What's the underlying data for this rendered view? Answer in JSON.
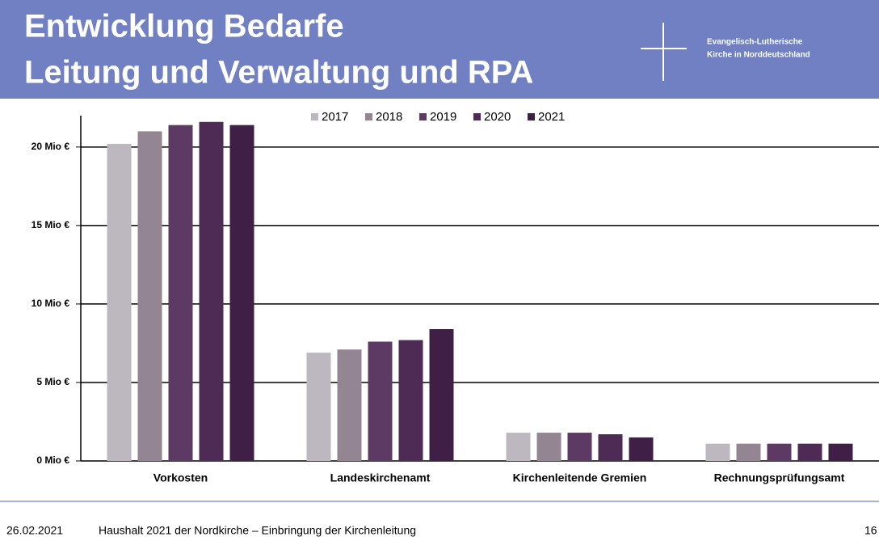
{
  "header": {
    "title_line1": "Entwicklung Bedarfe",
    "title_line2": "Leitung und Verwaltung und RPA",
    "org_line1": "Evangelisch-Lutherische",
    "org_line2": "Kirche in Norddeutschland"
  },
  "chart_data": {
    "type": "bar",
    "categories": [
      "Vorkosten",
      "Landeskirchenamt",
      "Kirchenleitende Gremien",
      "Rechnungsprüfungsamt"
    ],
    "series": [
      {
        "name": "2017",
        "color": "#bdb8c0",
        "values": [
          20.2,
          6.9,
          1.8,
          1.1
        ]
      },
      {
        "name": "2018",
        "color": "#938592",
        "values": [
          21.0,
          7.1,
          1.8,
          1.1
        ]
      },
      {
        "name": "2019",
        "color": "#5c3a63",
        "values": [
          21.4,
          7.6,
          1.8,
          1.1
        ]
      },
      {
        "name": "2020",
        "color": "#4e2b55",
        "values": [
          21.6,
          7.7,
          1.7,
          1.1
        ]
      },
      {
        "name": "2021",
        "color": "#3f1f45",
        "values": [
          21.4,
          8.4,
          1.5,
          1.1
        ]
      }
    ],
    "ylim": [
      0,
      22
    ],
    "yticks": [
      {
        "value": 0,
        "label": "0 Mio €"
      },
      {
        "value": 5,
        "label": "5 Mio €"
      },
      {
        "value": 10,
        "label": "10 Mio €"
      },
      {
        "value": 15,
        "label": "15 Mio €"
      },
      {
        "value": 20,
        "label": "20 Mio €"
      }
    ],
    "grid": true,
    "legend": "top"
  },
  "footer": {
    "date": "26.02.2021",
    "text": "Haushalt 2021 der Nordkirche – Einbringung der Kirchenleitung",
    "page": "16"
  }
}
